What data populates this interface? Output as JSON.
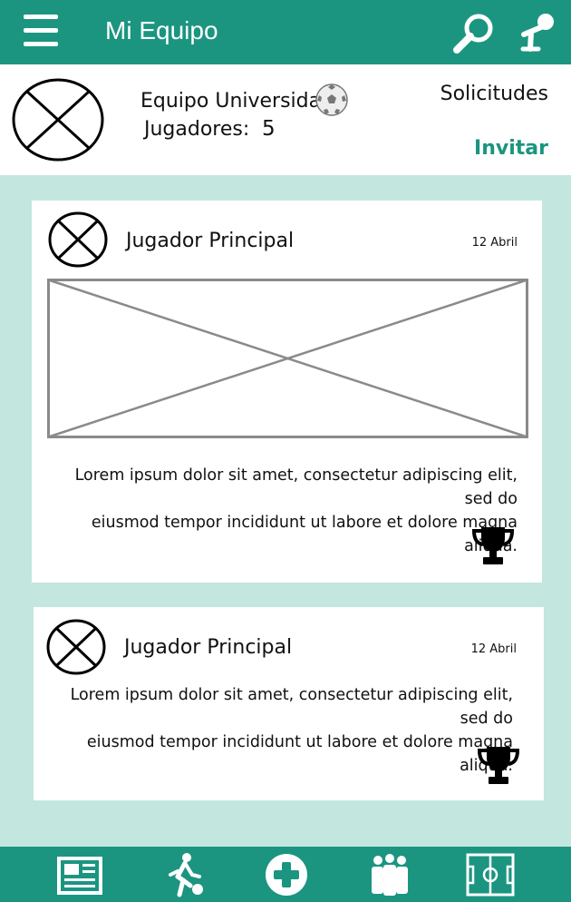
{
  "app": {
    "title": "Mi Equipo"
  },
  "icons": {
    "menu": "hamburger-icon",
    "search": "search-icon",
    "mic": "microphone-icon",
    "ball": "soccer-ball-icon",
    "trophy": "trophy-icon"
  },
  "colors": {
    "primary": "#1b9580",
    "background": "#c3e6df",
    "card": "#ffffff"
  },
  "team": {
    "name": "Equipo Universidad",
    "players_label": "Jugadores:",
    "players_count": "5",
    "requests_label": "Solicitudes",
    "invite_label": "Invitar"
  },
  "posts": [
    {
      "author": "Jugador Principal",
      "date": "12 Abril",
      "text_line1": "Lorem ipsum dolor sit amet, consectetur adipiscing elit, sed do",
      "text_line2": "eiusmod tempor incididunt ut labore et dolore magna aliqua."
    },
    {
      "author": "Jugador Principal",
      "date": "12 Abril",
      "text_line1": "Lorem ipsum dolor sit amet, consectetur adipiscing elit, sed do",
      "text_line2": "eiusmod tempor incididunt ut labore et dolore magna aliqua."
    }
  ],
  "bottom_nav": [
    {
      "icon": "newspaper-icon"
    },
    {
      "icon": "player-kick-icon"
    },
    {
      "icon": "add-icon"
    },
    {
      "icon": "team-icon"
    },
    {
      "icon": "field-icon"
    }
  ]
}
